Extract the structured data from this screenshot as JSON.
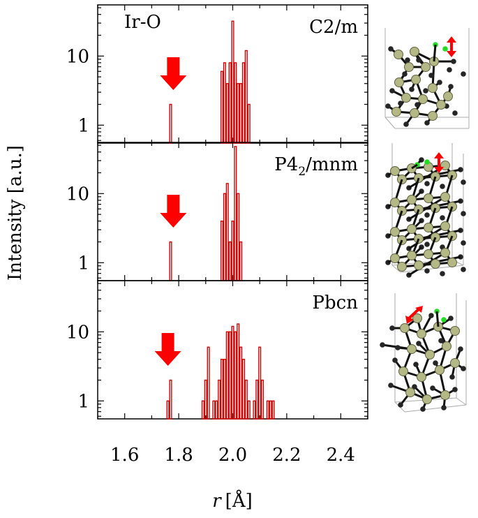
{
  "chart_data": {
    "type": "bar",
    "ylabel": "Intensity [a.u.]",
    "xlabel_var": "r",
    "xlabel_unit": "[Å]",
    "x_ticks": [
      1.6,
      1.8,
      2.0,
      2.2,
      2.4
    ],
    "x_tick_labels": [
      "1.6",
      "1.8",
      "2.0",
      "2.2",
      "2.4"
    ],
    "xlim": [
      1.5,
      2.5
    ],
    "y_scale": "log",
    "ylim": [
      0.55,
      55
    ],
    "y_ticks": [
      1,
      10
    ],
    "y_tick_labels": [
      "1",
      "10"
    ],
    "bin_width": 0.01,
    "bar_color": "#d40000",
    "arrow_color": "#ff0000",
    "annotation": "Ir-O",
    "panels": [
      {
        "label": "C2/m",
        "label_main": "C2/m",
        "label_sub": "",
        "label_tail": "",
        "arrow_x": 1.78,
        "bars": [
          {
            "x": 1.77,
            "v": 2
          },
          {
            "x": 1.96,
            "v": 6
          },
          {
            "x": 1.97,
            "v": 8
          },
          {
            "x": 1.98,
            "v": 4
          },
          {
            "x": 1.99,
            "v": 8
          },
          {
            "x": 2.0,
            "v": 32
          },
          {
            "x": 2.01,
            "v": 8
          },
          {
            "x": 2.02,
            "v": 4
          },
          {
            "x": 2.03,
            "v": 4
          },
          {
            "x": 2.04,
            "v": 8
          },
          {
            "x": 2.05,
            "v": 12
          },
          {
            "x": 2.06,
            "v": 2
          }
        ]
      },
      {
        "label": "P42/mnm",
        "label_main": "P4",
        "label_sub": "2",
        "label_tail": "/mnm",
        "arrow_x": 1.78,
        "bars": [
          {
            "x": 1.77,
            "v": 2
          },
          {
            "x": 1.96,
            "v": 4
          },
          {
            "x": 1.97,
            "v": 10
          },
          {
            "x": 1.98,
            "v": 14
          },
          {
            "x": 1.99,
            "v": 2
          },
          {
            "x": 2.0,
            "v": 4
          },
          {
            "x": 2.01,
            "v": 48
          },
          {
            "x": 2.02,
            "v": 10
          },
          {
            "x": 2.03,
            "v": 2
          }
        ]
      },
      {
        "label": "Pbcn",
        "label_main": "Pbcn",
        "label_sub": "",
        "label_tail": "",
        "arrow_x": 1.76,
        "bars": [
          {
            "x": 1.76,
            "v": 1
          },
          {
            "x": 1.77,
            "v": 2
          },
          {
            "x": 1.89,
            "v": 1
          },
          {
            "x": 1.9,
            "v": 2
          },
          {
            "x": 1.91,
            "v": 6
          },
          {
            "x": 1.93,
            "v": 1
          },
          {
            "x": 1.94,
            "v": 1
          },
          {
            "x": 1.95,
            "v": 2
          },
          {
            "x": 1.96,
            "v": 4
          },
          {
            "x": 1.97,
            "v": 4
          },
          {
            "x": 1.98,
            "v": 10
          },
          {
            "x": 1.99,
            "v": 10
          },
          {
            "x": 2.0,
            "v": 12
          },
          {
            "x": 2.01,
            "v": 10
          },
          {
            "x": 2.02,
            "v": 13
          },
          {
            "x": 2.03,
            "v": 6
          },
          {
            "x": 2.04,
            "v": 4
          },
          {
            "x": 2.05,
            "v": 2
          },
          {
            "x": 2.06,
            "v": 1
          },
          {
            "x": 2.08,
            "v": 1
          },
          {
            "x": 2.09,
            "v": 2
          },
          {
            "x": 2.1,
            "v": 6
          },
          {
            "x": 2.11,
            "v": 2
          },
          {
            "x": 2.13,
            "v": 1
          },
          {
            "x": 2.14,
            "v": 1
          },
          {
            "x": 2.15,
            "v": 1
          }
        ]
      }
    ]
  },
  "colors": {
    "atom_ir": "#b4b886",
    "atom_ir_stroke": "#5f6140",
    "atom_o": "#252525",
    "atom_o_green": "#22dd22",
    "bond": "#111111",
    "cell": "#aaaaaa",
    "arrow_red": "#ff0000"
  }
}
